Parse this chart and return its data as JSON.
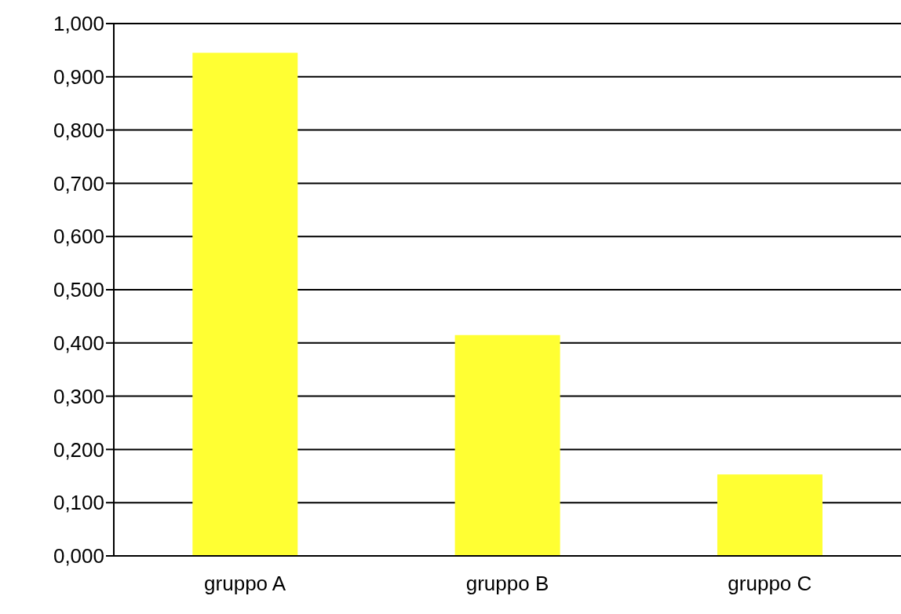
{
  "chart_data": {
    "type": "bar",
    "categories": [
      "gruppo A",
      "gruppo B",
      "gruppo C"
    ],
    "values": [
      0.945,
      0.415,
      0.153
    ],
    "color": "#ffff33",
    "ylim": [
      0,
      1
    ],
    "yticks": [
      {
        "value": 0,
        "label": "0,000"
      },
      {
        "value": 0.1,
        "label": "0,100"
      },
      {
        "value": 0.2,
        "label": "0,200"
      },
      {
        "value": 0.3,
        "label": "0,300"
      },
      {
        "value": 0.4,
        "label": "0,400"
      },
      {
        "value": 0.5,
        "label": "0,500"
      },
      {
        "value": 0.6,
        "label": "0,600"
      },
      {
        "value": 0.7,
        "label": "0,700"
      },
      {
        "value": 0.8,
        "label": "0,800"
      },
      {
        "value": 0.9,
        "label": "0,900"
      },
      {
        "value": 1,
        "label": "1,000"
      }
    ],
    "grid": "y",
    "legend": false
  }
}
